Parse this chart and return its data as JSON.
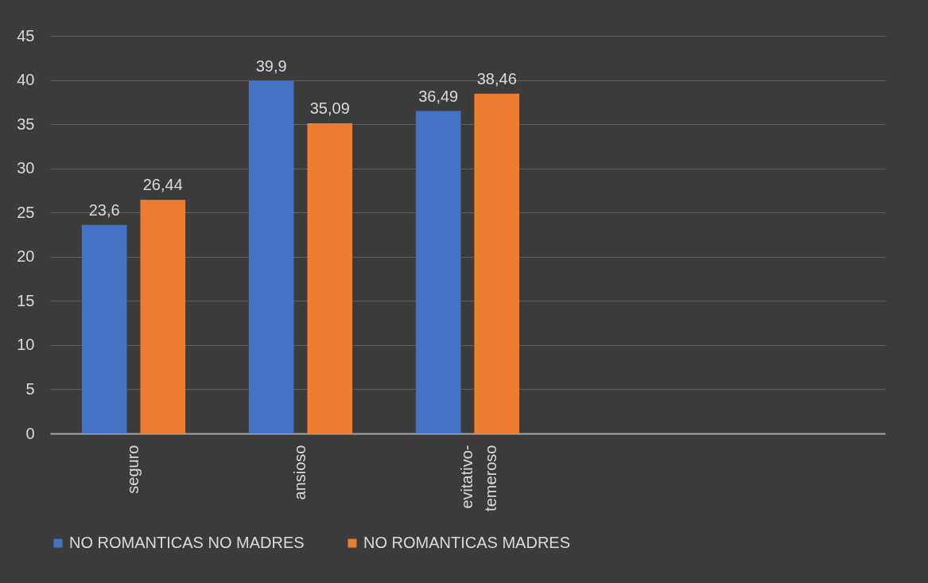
{
  "chart_data": {
    "type": "bar",
    "categories": [
      "seguro",
      "ansioso",
      "evitativo-temeroso",
      null,
      null
    ],
    "series": [
      {
        "name": "NO ROMANTICAS NO MADRES",
        "color": "#4472c4",
        "values": [
          23.6,
          39.9,
          36.49,
          null,
          null
        ],
        "value_labels": [
          "23,6",
          "39,9",
          "36,49",
          null,
          null
        ]
      },
      {
        "name": "NO ROMANTICAS MADRES",
        "color": "#ed7d31",
        "values": [
          26.44,
          35.09,
          38.46,
          null,
          null
        ],
        "value_labels": [
          "26,44",
          "35,09",
          "38,46",
          null,
          null
        ]
      }
    ],
    "ylim": [
      0,
      45
    ],
    "yticks": [
      0,
      5,
      10,
      15,
      20,
      25,
      30,
      35,
      40,
      45
    ],
    "grid": "y",
    "legend": "bottom"
  }
}
